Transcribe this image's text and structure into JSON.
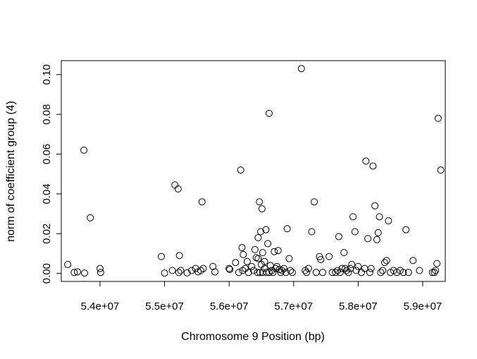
{
  "chart_data": {
    "type": "scatter",
    "title": "",
    "xlabel": "Chromosome 9 Position (bp)",
    "ylabel": "norm of coefficient group (4)",
    "xlim": [
      53400000,
      59350000
    ],
    "ylim": [
      -0.004,
      0.107
    ],
    "x_ticks": [
      54000000,
      55000000,
      56000000,
      57000000,
      58000000,
      59000000
    ],
    "x_tick_labels": [
      "5.4e+07",
      "5.5e+07",
      "5.6e+07",
      "5.7e+07",
      "5.8e+07",
      "5.9e+07"
    ],
    "y_ticks": [
      0.0,
      0.02,
      0.04,
      0.06,
      0.08,
      0.1
    ],
    "y_tick_labels": [
      "0.00",
      "0.02",
      "0.04",
      "0.06",
      "0.08",
      "0.10"
    ],
    "grid": false,
    "legend": "none",
    "points": [
      [
        53500000,
        0.0045
      ],
      [
        53600000,
        0.0005
      ],
      [
        53650000,
        0.0008
      ],
      [
        53760000,
        0.0002
      ],
      [
        53750000,
        0.062
      ],
      [
        53850000,
        0.028
      ],
      [
        54000000,
        0.0025
      ],
      [
        54010000,
        0.0005
      ],
      [
        54950000,
        0.0085
      ],
      [
        55000000,
        0.0002
      ],
      [
        55120000,
        0.0015
      ],
      [
        55160000,
        0.0445
      ],
      [
        55210000,
        0.0425
      ],
      [
        55230000,
        0.009
      ],
      [
        55250000,
        0.0015
      ],
      [
        55220000,
        0.0005
      ],
      [
        55350000,
        0.0003
      ],
      [
        55420000,
        0.0015
      ],
      [
        55480000,
        0.0025
      ],
      [
        55520000,
        0.0008
      ],
      [
        55580000,
        0.036
      ],
      [
        55600000,
        0.0025
      ],
      [
        55560000,
        0.0015
      ],
      [
        55750000,
        0.0035
      ],
      [
        55780000,
        0.0008
      ],
      [
        56000000,
        0.0025
      ],
      [
        56010000,
        0.002
      ],
      [
        56100000,
        0.0055
      ],
      [
        56150000,
        0.0005
      ],
      [
        56200000,
        0.013
      ],
      [
        56220000,
        0.0095
      ],
      [
        56180000,
        0.052
      ],
      [
        56210000,
        0.0015
      ],
      [
        56250000,
        0.0025
      ],
      [
        56280000,
        0.006
      ],
      [
        56300000,
        0.0005
      ],
      [
        56350000,
        0.0035
      ],
      [
        56380000,
        0.0015
      ],
      [
        56400000,
        0.012
      ],
      [
        56420000,
        0.008
      ],
      [
        56450000,
        0.018
      ],
      [
        56470000,
        0.036
      ],
      [
        56490000,
        0.021
      ],
      [
        56510000,
        0.0325
      ],
      [
        56520000,
        0.0105
      ],
      [
        56550000,
        0.0025
      ],
      [
        56570000,
        0.022
      ],
      [
        56600000,
        0.015
      ],
      [
        56620000,
        0.0805
      ],
      [
        56640000,
        0.004
      ],
      [
        56660000,
        0.0015
      ],
      [
        56680000,
        0.0005
      ],
      [
        56700000,
        0.011
      ],
      [
        56720000,
        0.0025
      ],
      [
        56740000,
        0.0035
      ],
      [
        56760000,
        0.0115
      ],
      [
        56780000,
        0.002
      ],
      [
        56800000,
        0.0005
      ],
      [
        56820000,
        0.0015
      ],
      [
        56850000,
        0.0025
      ],
      [
        56880000,
        0.0005
      ],
      [
        56900000,
        0.0225
      ],
      [
        56930000,
        0.0075
      ],
      [
        56950000,
        0.0015
      ],
      [
        56980000,
        0.0005
      ],
      [
        56550000,
        0.006
      ],
      [
        56500000,
        0.0045
      ],
      [
        56450000,
        0.0075
      ],
      [
        56440000,
        0.0005
      ],
      [
        56480000,
        0.0005
      ],
      [
        56520000,
        0.0005
      ],
      [
        56580000,
        0.0005
      ],
      [
        56620000,
        0.0005
      ],
      [
        57120000,
        0.103
      ],
      [
        57180000,
        0.0015
      ],
      [
        57200000,
        0.0005
      ],
      [
        57230000,
        0.0025
      ],
      [
        57280000,
        0.021
      ],
      [
        57320000,
        0.036
      ],
      [
        57350000,
        0.0005
      ],
      [
        57400000,
        0.0085
      ],
      [
        57420000,
        0.007
      ],
      [
        57450000,
        0.0005
      ],
      [
        57550000,
        0.0085
      ],
      [
        57600000,
        0.0005
      ],
      [
        57650000,
        0.0005
      ],
      [
        57680000,
        0.0015
      ],
      [
        57700000,
        0.0185
      ],
      [
        57720000,
        0.0005
      ],
      [
        57750000,
        0.0025
      ],
      [
        57780000,
        0.0105
      ],
      [
        57800000,
        0.0025
      ],
      [
        57820000,
        0.0015
      ],
      [
        57850000,
        0.0005
      ],
      [
        57880000,
        0.0025
      ],
      [
        57900000,
        0.0045
      ],
      [
        57920000,
        0.0285
      ],
      [
        57950000,
        0.021
      ],
      [
        57970000,
        0.0015
      ],
      [
        58000000,
        0.0035
      ],
      [
        58050000,
        0.0005
      ],
      [
        58100000,
        0.0025
      ],
      [
        58120000,
        0.0565
      ],
      [
        58150000,
        0.0175
      ],
      [
        58180000,
        0.0005
      ],
      [
        58200000,
        0.0025
      ],
      [
        58230000,
        0.054
      ],
      [
        58260000,
        0.034
      ],
      [
        58290000,
        0.017
      ],
      [
        58310000,
        0.0205
      ],
      [
        58330000,
        0.0285
      ],
      [
        58350000,
        0.0005
      ],
      [
        58380000,
        0.0015
      ],
      [
        58410000,
        0.0055
      ],
      [
        58440000,
        0.0065
      ],
      [
        58470000,
        0.0265
      ],
      [
        58500000,
        0.0005
      ],
      [
        58550000,
        0.0015
      ],
      [
        58600000,
        0.0005
      ],
      [
        58650000,
        0.0015
      ],
      [
        58700000,
        0.0005
      ],
      [
        58740000,
        0.022
      ],
      [
        58780000,
        0.0005
      ],
      [
        58850000,
        0.0065
      ],
      [
        58950000,
        0.0015
      ],
      [
        59150000,
        0.0005
      ],
      [
        59180000,
        0.0005
      ],
      [
        59220000,
        0.005
      ],
      [
        59240000,
        0.078
      ],
      [
        59280000,
        0.052
      ],
      [
        59200000,
        0.0015
      ]
    ]
  }
}
